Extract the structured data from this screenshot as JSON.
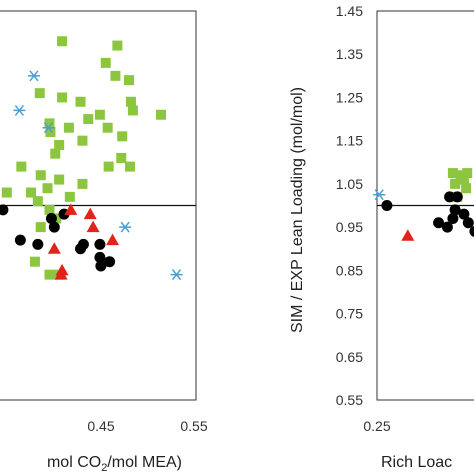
{
  "chart_data": [
    {
      "type": "scatter",
      "xlabel": "mol CO2/mol MEA",
      "ylabel": "",
      "x_ticks": [
        "0.45",
        "0.55"
      ],
      "x_tick_values": [
        0.45,
        0.55
      ],
      "xlim": [
        0.35,
        0.55
      ],
      "ylim": [
        0.55,
        1.45
      ],
      "reference_line_y": 1.0,
      "series": [
        {
          "marker": "square",
          "color": "#8cc63f",
          "points": [
            [
              0.414,
              1.38
            ],
            [
              0.459,
              1.33
            ],
            [
              0.471,
              1.37
            ],
            [
              0.483,
              1.29
            ],
            [
              0.469,
              1.3
            ],
            [
              0.391,
              1.26
            ],
            [
              0.414,
              1.25
            ],
            [
              0.433,
              1.24
            ],
            [
              0.453,
              1.21
            ],
            [
              0.485,
              1.24
            ],
            [
              0.487,
              1.22
            ],
            [
              0.516,
              1.21
            ],
            [
              0.401,
              1.19
            ],
            [
              0.441,
              1.2
            ],
            [
              0.476,
              1.16
            ],
            [
              0.402,
              1.17
            ],
            [
              0.411,
              1.14
            ],
            [
              0.407,
              1.12
            ],
            [
              0.421,
              1.18
            ],
            [
              0.435,
              1.15
            ],
            [
              0.461,
              1.18
            ],
            [
              0.484,
              1.09
            ],
            [
              0.475,
              1.11
            ],
            [
              0.392,
              1.07
            ],
            [
              0.372,
              1.09
            ],
            [
              0.411,
              1.06
            ],
            [
              0.382,
              1.03
            ],
            [
              0.399,
              1.04
            ],
            [
              0.435,
              1.05
            ],
            [
              0.422,
              1.02
            ],
            [
              0.462,
              1.09
            ],
            [
              0.389,
              1.01
            ],
            [
              0.401,
              0.99
            ],
            [
              0.408,
              0.97
            ],
            [
              0.392,
              0.95
            ],
            [
              0.357,
              1.03
            ],
            [
              0.386,
              0.87
            ],
            [
              0.401,
              0.84
            ],
            [
              0.411,
              0.84
            ]
          ]
        },
        {
          "marker": "circle",
          "color": "#000000",
          "points": [
            [
              0.353,
              0.99
            ],
            [
              0.371,
              0.92
            ],
            [
              0.389,
              0.91
            ],
            [
              0.403,
              0.97
            ],
            [
              0.416,
              0.98
            ],
            [
              0.406,
              0.95
            ],
            [
              0.436,
              0.91
            ],
            [
              0.453,
              0.91
            ],
            [
              0.453,
              0.88
            ],
            [
              0.463,
              0.87
            ],
            [
              0.454,
              0.86
            ],
            [
              0.433,
              0.9
            ]
          ]
        },
        {
          "marker": "triangle",
          "color": "#e2231a",
          "points": [
            [
              0.423,
              0.99
            ],
            [
              0.443,
              0.98
            ],
            [
              0.446,
              0.95
            ],
            [
              0.406,
              0.9
            ],
            [
              0.466,
              0.92
            ],
            [
              0.414,
              0.85
            ],
            [
              0.413,
              0.84
            ]
          ]
        },
        {
          "marker": "asterisk",
          "color": "#4a9fd8",
          "points": [
            [
              0.385,
              1.3
            ],
            [
              0.37,
              1.22
            ],
            [
              0.4,
              1.18
            ],
            [
              0.479,
              0.95
            ],
            [
              0.532,
              0.84
            ]
          ]
        }
      ]
    },
    {
      "type": "scatter",
      "xlabel": "Rich Loac",
      "ylabel": "SIM / EXP Lean Loading (mol/mol)",
      "x_ticks": [
        "0.25"
      ],
      "x_tick_values": [
        0.25
      ],
      "xlim": [
        0.25,
        0.35
      ],
      "ylim": [
        0.55,
        1.45
      ],
      "y_ticks": [
        "1.45",
        "1.35",
        "1.25",
        "1.15",
        "1.05",
        "0.95",
        "0.85",
        "0.75",
        "0.65",
        "0.55"
      ],
      "y_tick_values": [
        1.45,
        1.35,
        1.25,
        1.15,
        1.05,
        0.95,
        0.85,
        0.75,
        0.65,
        0.55
      ],
      "reference_line_y": 1.0,
      "series": [
        {
          "marker": "square",
          "color": "#8cc63f",
          "points": [
            [
              0.319,
              1.075
            ],
            [
              0.326,
              1.07
            ],
            [
              0.332,
              1.075
            ],
            [
              0.329,
              1.06
            ],
            [
              0.321,
              1.05
            ],
            [
              0.331,
              1.04
            ],
            [
              0.323,
              1.02
            ]
          ]
        },
        {
          "marker": "circle",
          "color": "#000000",
          "points": [
            [
              0.259,
              1.0
            ],
            [
              0.306,
              0.96
            ],
            [
              0.316,
              1.02
            ],
            [
              0.321,
              0.99
            ],
            [
              0.323,
              1.02
            ],
            [
              0.319,
              0.97
            ],
            [
              0.333,
              0.96
            ],
            [
              0.329,
              0.98
            ],
            [
              0.339,
              0.94
            ],
            [
              0.314,
              0.95
            ]
          ]
        },
        {
          "marker": "triangle",
          "color": "#e2231a",
          "points": [
            [
              0.278,
              0.93
            ]
          ]
        },
        {
          "marker": "asterisk",
          "color": "#4a9fd8",
          "points": [
            [
              0.252,
              1.025
            ]
          ]
        }
      ]
    }
  ]
}
